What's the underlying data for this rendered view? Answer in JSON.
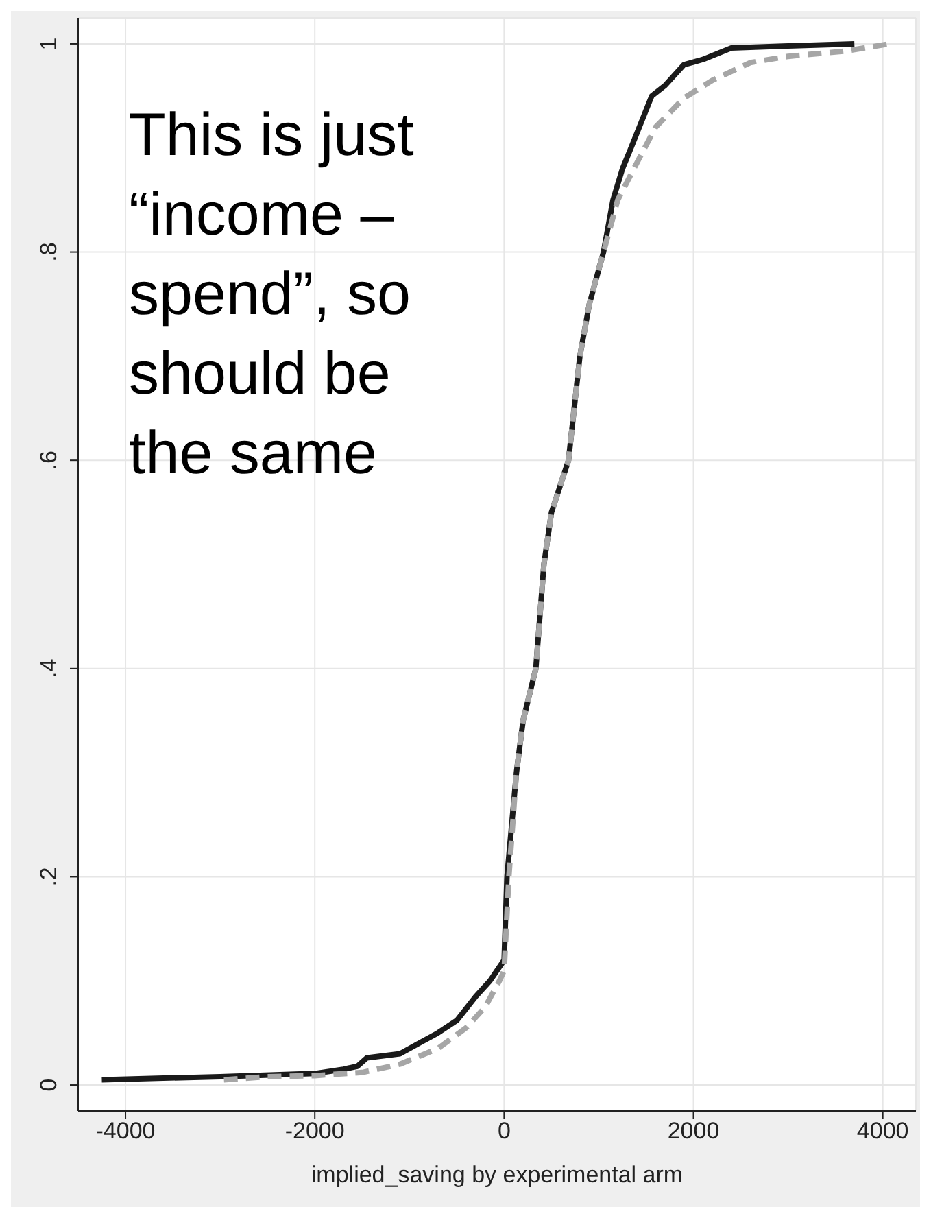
{
  "chart_data": {
    "type": "line",
    "xlabel": "implied_saving by experimental arm",
    "annotations": [
      "This is just “income – spend”, so should be the same"
    ],
    "xlim": [
      -4500,
      4350
    ],
    "xticks": [
      -4000,
      -2000,
      0,
      2000,
      4000
    ],
    "ylim": [
      -0.025,
      1.025
    ],
    "yticks": [
      {
        "value": 0,
        "label": "0"
      },
      {
        "value": 0.2,
        "label": ".2"
      },
      {
        "value": 0.4,
        "label": ".4"
      },
      {
        "value": 0.6,
        "label": ".6"
      },
      {
        "value": 0.8,
        "label": ".8"
      },
      {
        "value": 1,
        "label": "1"
      }
    ],
    "grid": true,
    "marker": "none",
    "series": [
      {
        "color": "#1a1a1a",
        "line_style": "solid",
        "x": [
          -4250,
          -3000,
          -2000,
          -1700,
          -1550,
          -1450,
          -1100,
          -900,
          -700,
          -500,
          -300,
          -150,
          0,
          30,
          130,
          200,
          335,
          420,
          500,
          680,
          800,
          900,
          1050,
          1150,
          1250,
          1340,
          1560,
          1700,
          1900,
          2100,
          2400,
          3000,
          3700
        ],
        "values": [
          0.005,
          0.008,
          0.011,
          0.015,
          0.018,
          0.026,
          0.03,
          0.04,
          0.05,
          0.062,
          0.085,
          0.1,
          0.12,
          0.2,
          0.3,
          0.35,
          0.4,
          0.5,
          0.55,
          0.6,
          0.7,
          0.75,
          0.8,
          0.85,
          0.88,
          0.9,
          0.95,
          0.96,
          0.98,
          0.985,
          0.996,
          0.998,
          1.0
        ]
      },
      {
        "color": "#a6a6a6",
        "line_style": "dashed",
        "x": [
          -2960,
          -2500,
          -2000,
          -1500,
          -1100,
          -700,
          -400,
          -200,
          -50,
          0,
          50,
          130,
          200,
          335,
          420,
          500,
          680,
          800,
          900,
          1050,
          1200,
          1370,
          1600,
          1900,
          2200,
          2600,
          3000,
          3600,
          4070
        ],
        "values": [
          0.005,
          0.008,
          0.009,
          0.012,
          0.02,
          0.035,
          0.055,
          0.075,
          0.1,
          0.11,
          0.2,
          0.3,
          0.35,
          0.4,
          0.5,
          0.55,
          0.6,
          0.7,
          0.75,
          0.8,
          0.85,
          0.88,
          0.92,
          0.948,
          0.965,
          0.982,
          0.988,
          0.993,
          1.0
        ]
      }
    ]
  }
}
